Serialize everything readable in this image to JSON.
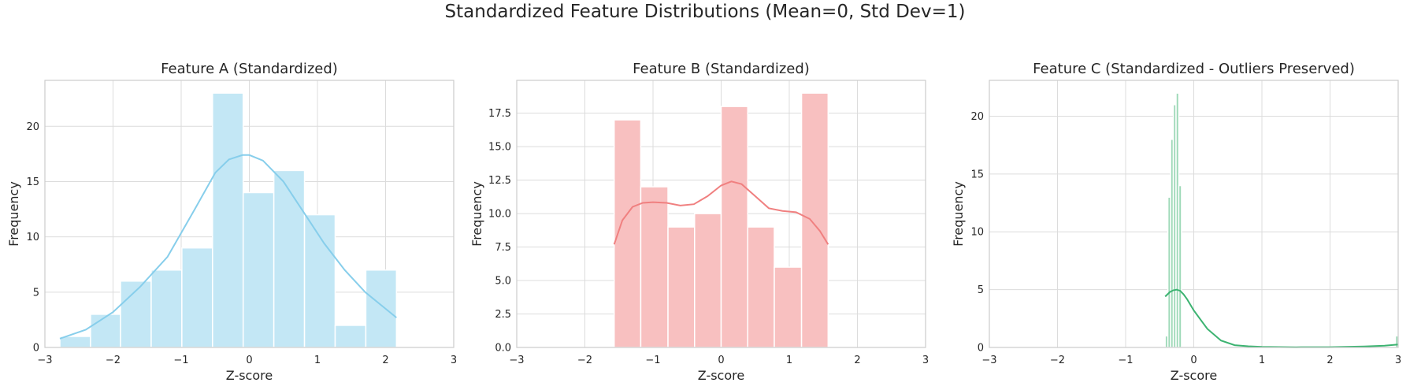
{
  "figure": {
    "suptitle": "Standardized Feature Distributions (Mean=0, Std Dev=1)"
  },
  "chart_data": [
    {
      "type": "bar",
      "title": "Feature A (Standardized)",
      "xlabel": "Z-score",
      "ylabel": "Frequency",
      "xlim": [
        -3,
        3
      ],
      "ylim": [
        0,
        24.15
      ],
      "xticks": [
        -3,
        -2,
        -1,
        0,
        1,
        2,
        3
      ],
      "xtick_labels": [
        "−3",
        "−2",
        "−1",
        "0",
        "1",
        "2",
        "3"
      ],
      "yticks": [
        0,
        5,
        10,
        15,
        20
      ],
      "ytick_labels": [
        "0",
        "5",
        "10",
        "15",
        "20"
      ],
      "grid": true,
      "color": "#87ceeb",
      "bins": [
        {
          "x0": -2.78,
          "x1": -2.33,
          "count": 1
        },
        {
          "x0": -2.33,
          "x1": -1.89,
          "count": 3
        },
        {
          "x0": -1.89,
          "x1": -1.44,
          "count": 6
        },
        {
          "x0": -1.44,
          "x1": -0.99,
          "count": 7
        },
        {
          "x0": -0.99,
          "x1": -0.54,
          "count": 9
        },
        {
          "x0": -0.54,
          "x1": -0.09,
          "count": 23
        },
        {
          "x0": -0.09,
          "x1": 0.36,
          "count": 14
        },
        {
          "x0": 0.36,
          "x1": 0.81,
          "count": 16
        },
        {
          "x0": 0.81,
          "x1": 1.26,
          "count": 12
        },
        {
          "x0": 1.26,
          "x1": 1.71,
          "count": 2
        },
        {
          "x0": 1.71,
          "x1": 2.16,
          "count": 7
        }
      ],
      "kde": {
        "x": [
          -2.78,
          -2.4,
          -2.0,
          -1.6,
          -1.2,
          -0.8,
          -0.5,
          -0.3,
          -0.1,
          0.0,
          0.2,
          0.5,
          0.8,
          1.1,
          1.4,
          1.7,
          2.0,
          2.16
        ],
        "y": [
          0.8,
          1.6,
          3.2,
          5.5,
          8.2,
          12.5,
          15.8,
          17.0,
          17.4,
          17.4,
          16.9,
          15.0,
          12.2,
          9.4,
          7.0,
          5.0,
          3.5,
          2.7
        ]
      }
    },
    {
      "type": "bar",
      "title": "Feature B (Standardized)",
      "xlabel": "Z-score",
      "ylabel": "Frequency",
      "xlim": [
        -3,
        3
      ],
      "ylim": [
        0,
        19.95
      ],
      "xticks": [
        -3,
        -2,
        -1,
        0,
        1,
        2,
        3
      ],
      "xtick_labels": [
        "−3",
        "−2",
        "−1",
        "0",
        "1",
        "2",
        "3"
      ],
      "yticks": [
        0,
        2.5,
        5,
        7.5,
        10,
        12.5,
        15,
        17.5
      ],
      "ytick_labels": [
        "0.0",
        "2.5",
        "5.0",
        "7.5",
        "10.0",
        "12.5",
        "15.0",
        "17.5"
      ],
      "grid": true,
      "color": "#f08080",
      "bins": [
        {
          "x0": -1.57,
          "x1": -1.18,
          "count": 17
        },
        {
          "x0": -1.18,
          "x1": -0.78,
          "count": 12
        },
        {
          "x0": -0.78,
          "x1": -0.39,
          "count": 9
        },
        {
          "x0": -0.39,
          "x1": 0.0,
          "count": 10
        },
        {
          "x0": 0.0,
          "x1": 0.39,
          "count": 18
        },
        {
          "x0": 0.39,
          "x1": 0.78,
          "count": 9
        },
        {
          "x0": 0.78,
          "x1": 1.18,
          "count": 6
        },
        {
          "x0": 1.18,
          "x1": 1.57,
          "count": 19
        }
      ],
      "kde": {
        "x": [
          -1.57,
          -1.45,
          -1.3,
          -1.15,
          -1.0,
          -0.8,
          -0.6,
          -0.4,
          -0.2,
          0.0,
          0.15,
          0.3,
          0.5,
          0.7,
          0.9,
          1.1,
          1.3,
          1.45,
          1.57
        ],
        "y": [
          7.7,
          9.5,
          10.5,
          10.8,
          10.85,
          10.8,
          10.6,
          10.7,
          11.3,
          12.1,
          12.4,
          12.2,
          11.3,
          10.4,
          10.2,
          10.1,
          9.6,
          8.7,
          7.7
        ]
      }
    },
    {
      "type": "bar",
      "title": "Feature C (Standardized - Outliers Preserved)",
      "xlabel": "Z-score",
      "ylabel": "Frequency",
      "xlim": [
        -3,
        3
      ],
      "ylim": [
        0,
        23.1
      ],
      "xticks": [
        -3,
        -2,
        -1,
        0,
        1,
        2,
        3
      ],
      "xtick_labels": [
        "−3",
        "−2",
        "−1",
        "0",
        "1",
        "2",
        "3"
      ],
      "yticks": [
        0,
        5,
        10,
        15,
        20
      ],
      "ytick_labels": [
        "0",
        "5",
        "10",
        "15",
        "20"
      ],
      "grid": true,
      "color": "#3cb371",
      "bins": [
        {
          "x0": -0.42,
          "x1": -0.38,
          "count": 1
        },
        {
          "x0": -0.38,
          "x1": -0.34,
          "count": 13
        },
        {
          "x0": -0.34,
          "x1": -0.3,
          "count": 18
        },
        {
          "x0": -0.3,
          "x1": -0.26,
          "count": 21
        },
        {
          "x0": -0.26,
          "x1": -0.22,
          "count": 22
        },
        {
          "x0": -0.22,
          "x1": -0.18,
          "count": 14
        },
        {
          "x0": 2.96,
          "x1": 3.0,
          "count": 1
        }
      ],
      "kde": {
        "x": [
          -0.42,
          -0.35,
          -0.3,
          -0.25,
          -0.2,
          -0.15,
          -0.1,
          0.0,
          0.2,
          0.4,
          0.6,
          0.8,
          1.0,
          1.5,
          2.0,
          2.5,
          2.8,
          3.0
        ],
        "y": [
          4.4,
          4.8,
          4.95,
          5.0,
          4.9,
          4.6,
          4.2,
          3.2,
          1.6,
          0.6,
          0.2,
          0.1,
          0.05,
          0.02,
          0.03,
          0.08,
          0.15,
          0.25
        ]
      }
    }
  ]
}
